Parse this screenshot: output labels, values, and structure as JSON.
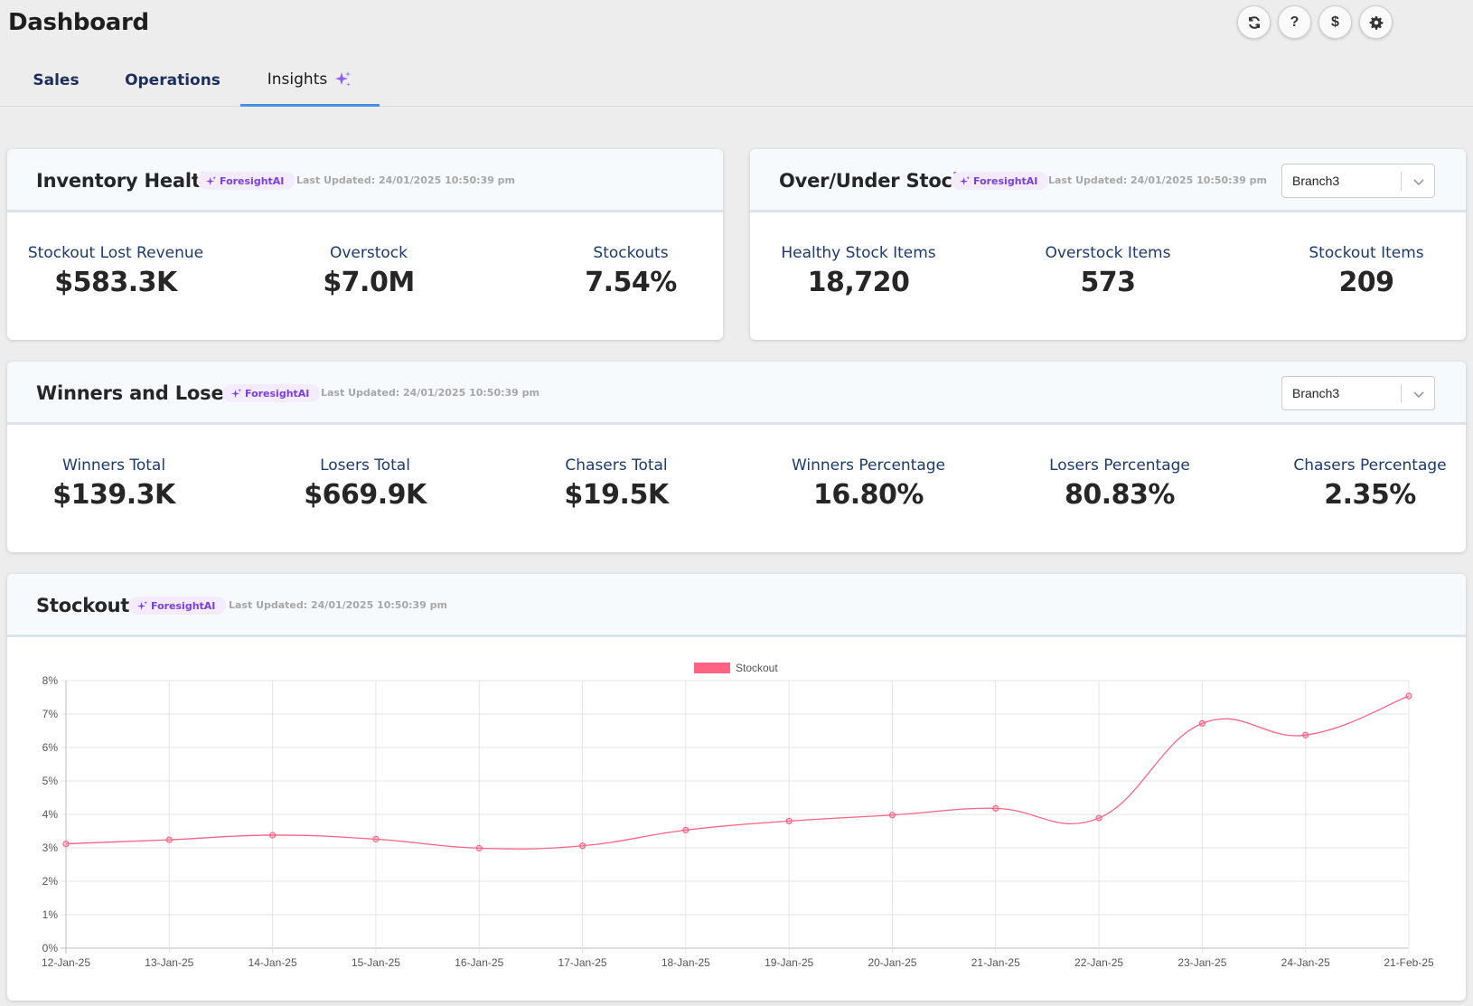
{
  "header": {
    "title": "Dashboard",
    "tabs": [
      {
        "label": "Sales"
      },
      {
        "label": "Operations"
      },
      {
        "label": "Insights"
      }
    ],
    "icons": [
      "refresh-icon",
      "help-icon",
      "dollar-icon",
      "settings-icon"
    ],
    "help_glyph": "?",
    "dollar_glyph": "$"
  },
  "badge_label": "ForesightAI",
  "last_updated": "Last Updated: 24/01/2025 10:50:39 pm",
  "inventory_health": {
    "title": "Inventory Health",
    "metrics": [
      {
        "label": "Stockout Lost Revenue",
        "value": "$583.3K"
      },
      {
        "label": "Overstock",
        "value": "$7.0M"
      },
      {
        "label": "Stockouts",
        "value": "7.54%"
      }
    ]
  },
  "over_under": {
    "title": "Over/Under Stock",
    "branch": "Branch3",
    "metrics": [
      {
        "label": "Healthy Stock Items",
        "value": "18,720"
      },
      {
        "label": "Overstock Items",
        "value": "573"
      },
      {
        "label": "Stockout Items",
        "value": "209"
      }
    ]
  },
  "winners_losers": {
    "title": "Winners and Losers",
    "branch": "Branch3",
    "metrics": [
      {
        "label": "Winners Total",
        "value": "$139.3K"
      },
      {
        "label": "Losers Total",
        "value": "$669.9K"
      },
      {
        "label": "Chasers Total",
        "value": "$19.5K"
      },
      {
        "label": "Winners Percentage",
        "value": "16.80%"
      },
      {
        "label": "Losers Percentage",
        "value": "80.83%"
      },
      {
        "label": "Chasers Percentage",
        "value": "2.35%"
      }
    ]
  },
  "stockout": {
    "title": "Stockout"
  },
  "colors": {
    "accent": "#4a90e2",
    "series": "#ff6384",
    "badge_text": "#7a3fe0"
  },
  "chart_data": {
    "type": "line",
    "x": [
      "12-Jan-25",
      "13-Jan-25",
      "14-Jan-25",
      "15-Jan-25",
      "16-Jan-25",
      "17-Jan-25",
      "18-Jan-25",
      "19-Jan-25",
      "20-Jan-25",
      "21-Jan-25",
      "22-Jan-25",
      "23-Jan-25",
      "24-Jan-25",
      "21-Feb-25"
    ],
    "series": [
      {
        "name": "Stockout",
        "values": [
          3.12,
          3.24,
          3.38,
          3.26,
          2.99,
          3.06,
          3.53,
          3.8,
          3.98,
          4.18,
          3.89,
          6.72,
          6.37,
          7.54
        ]
      }
    ],
    "yticks": [
      "0%",
      "1%",
      "2%",
      "3%",
      "4%",
      "5%",
      "6%",
      "7%",
      "8%"
    ],
    "ylim": [
      0,
      8
    ],
    "grid": true,
    "legend": "top-center"
  }
}
